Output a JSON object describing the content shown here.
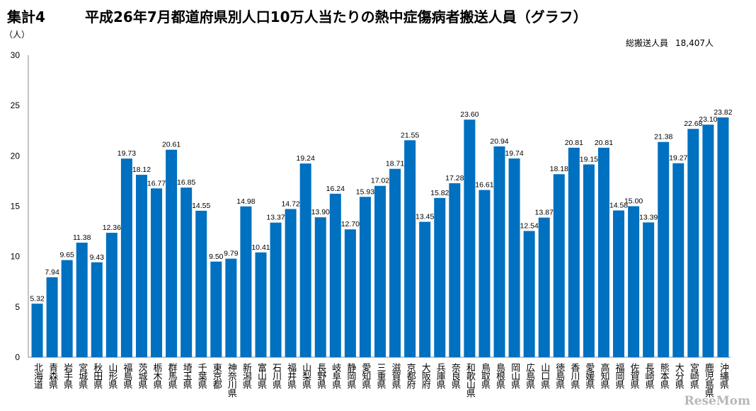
{
  "header": {
    "sheet_label": "集計4",
    "title": "平成26年7月都道府県別人口10万人当たりの熱中症傷病者搬送人員（グラフ）",
    "total_label": "総搬送人員",
    "total_value": "18,407人"
  },
  "watermark": "ReseMom",
  "chart_data": {
    "type": "bar",
    "title": "平成26年7月都道府県別人口10万人当たりの熱中症傷病者搬送人員（グラフ）",
    "ylabel": "（人）",
    "xlabel": "",
    "ylim": [
      0,
      30
    ],
    "yticks": [
      0,
      5,
      10,
      15,
      20,
      25,
      30
    ],
    "grid": false,
    "legend": "none",
    "bar_color": "#0070c0",
    "categories": [
      "北海道",
      "青森県",
      "岩手県",
      "宮城県",
      "秋田県",
      "山形県",
      "福島県",
      "茨城県",
      "栃木県",
      "群馬県",
      "埼玉県",
      "千葉県",
      "東京都",
      "神奈川県",
      "新潟県",
      "富山県",
      "石川県",
      "福井県",
      "山梨県",
      "長野県",
      "岐阜県",
      "静岡県",
      "愛知県",
      "三重県",
      "滋賀県",
      "京都府",
      "大阪府",
      "兵庫県",
      "奈良県",
      "和歌山県",
      "鳥取県",
      "島根県",
      "岡山県",
      "広島県",
      "山口県",
      "徳島県",
      "香川県",
      "愛媛県",
      "高知県",
      "福岡県",
      "佐賀県",
      "長崎県",
      "熊本県",
      "大分県",
      "宮崎県",
      "鹿児島県",
      "沖縄県"
    ],
    "values": [
      5.32,
      7.94,
      9.65,
      11.38,
      9.43,
      12.36,
      19.73,
      18.12,
      16.77,
      20.61,
      16.85,
      14.55,
      9.5,
      9.79,
      14.98,
      10.41,
      13.37,
      14.72,
      19.24,
      13.9,
      16.24,
      12.7,
      15.93,
      17.02,
      18.71,
      21.55,
      13.45,
      15.82,
      17.28,
      23.6,
      16.61,
      20.94,
      19.74,
      12.54,
      13.87,
      18.18,
      20.81,
      19.15,
      20.81,
      14.58,
      15.0,
      13.39,
      21.38,
      19.27,
      22.68,
      23.1,
      23.82
    ],
    "data_labels": [
      "5.32",
      "7.94",
      "9.65",
      "11.38",
      "9.43",
      "12.36",
      "19.73",
      "18.12",
      "16.77",
      "20.61",
      "16.85",
      "14.55",
      "9.50",
      "9.79",
      "14.98",
      "10.41",
      "13.37",
      "14.72",
      "19.24",
      "13.90",
      "16.24",
      "12.70",
      "15.93",
      "17.02",
      "18.71",
      "21.55",
      "13.45",
      "15.82",
      "17.28",
      "23.60",
      "16.61",
      "20.94",
      "19.74",
      "12.54",
      "13.87",
      "18.18",
      "20.81",
      "19.15",
      "20.81",
      "14.58",
      "15.00",
      "13.39",
      "21.38",
      "19.27",
      "22.68",
      "23.10",
      "23.82"
    ]
  }
}
